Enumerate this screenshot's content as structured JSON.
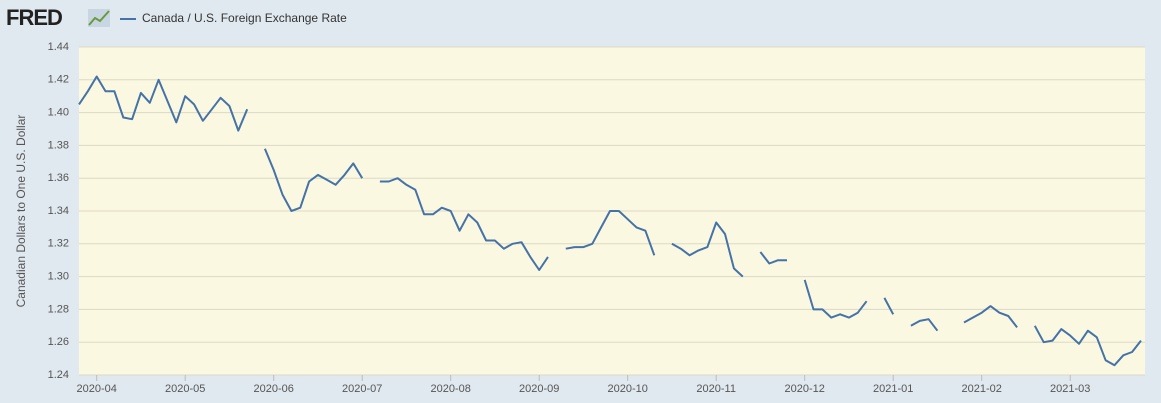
{
  "chart_data": {
    "type": "line",
    "source_logo": "FRED",
    "y_label": "Canadian Dollars to One U.S. Dollar",
    "categories": [
      null,
      null,
      "2020-04",
      null,
      null,
      null,
      null,
      null,
      null,
      null,
      null,
      null,
      "2020-05",
      null,
      null,
      null,
      null,
      null,
      null,
      null,
      null,
      null,
      "2020-06",
      null,
      null,
      null,
      null,
      null,
      null,
      null,
      null,
      null,
      "2020-07",
      null,
      null,
      null,
      null,
      null,
      null,
      null,
      null,
      null,
      "2020-08",
      null,
      null,
      null,
      null,
      null,
      null,
      null,
      null,
      null,
      "2020-09",
      null,
      null,
      null,
      null,
      null,
      null,
      null,
      null,
      null,
      "2020-10",
      null,
      null,
      null,
      null,
      null,
      null,
      null,
      null,
      null,
      "2020-11",
      null,
      null,
      null,
      null,
      null,
      null,
      null,
      null,
      null,
      "2020-12",
      null,
      null,
      null,
      null,
      null,
      null,
      null,
      null,
      null,
      "2021-01",
      null,
      null,
      null,
      null,
      null,
      null,
      null,
      null,
      null,
      "2021-02",
      null,
      null,
      null,
      null,
      null,
      null,
      null,
      null,
      null,
      "2021-03",
      null,
      null,
      null,
      null,
      null,
      null,
      null,
      null
    ],
    "series": [
      {
        "name": "Canada / U.S. Foreign Exchange Rate",
        "color": "#4572a7",
        "values": [
          1.405,
          1.413,
          1.422,
          1.413,
          1.413,
          1.397,
          1.396,
          1.412,
          1.406,
          1.42,
          1.407,
          1.394,
          1.41,
          1.405,
          1.395,
          1.402,
          1.409,
          1.404,
          1.389,
          1.402,
          null,
          1.378,
          1.365,
          1.35,
          1.34,
          1.342,
          1.358,
          1.362,
          1.359,
          1.356,
          1.362,
          1.369,
          1.36,
          null,
          1.358,
          1.358,
          1.36,
          1.356,
          1.353,
          1.338,
          1.338,
          1.342,
          1.34,
          1.328,
          1.338,
          1.333,
          1.322,
          1.322,
          1.317,
          1.32,
          1.321,
          1.312,
          1.304,
          1.312,
          null,
          1.317,
          1.318,
          1.318,
          1.32,
          1.33,
          1.34,
          1.34,
          1.335,
          1.33,
          1.328,
          1.313,
          null,
          1.32,
          1.317,
          1.313,
          1.316,
          1.318,
          1.333,
          1.326,
          1.305,
          1.3,
          null,
          1.315,
          1.308,
          1.31,
          1.31,
          null,
          1.298,
          1.28,
          1.28,
          1.275,
          1.277,
          1.275,
          1.278,
          1.285,
          null,
          1.287,
          1.277,
          null,
          1.27,
          1.273,
          1.274,
          1.267,
          null,
          null,
          1.272,
          1.275,
          1.278,
          1.282,
          1.278,
          1.276,
          1.269,
          null,
          1.27,
          1.26,
          1.261,
          1.268,
          1.264,
          1.259,
          1.267,
          1.263,
          1.249,
          1.246,
          1.252,
          1.254,
          1.261
        ]
      }
    ],
    "ylim": [
      1.24,
      1.44
    ],
    "yticks": [
      1.24,
      1.26,
      1.28,
      {
        "value": 1.3,
        "label": "1.30"
      },
      1.32,
      1.34,
      1.36,
      1.38,
      {
        "value": 1.4,
        "label": "1.40"
      },
      1.42,
      1.44
    ],
    "grid": true
  }
}
